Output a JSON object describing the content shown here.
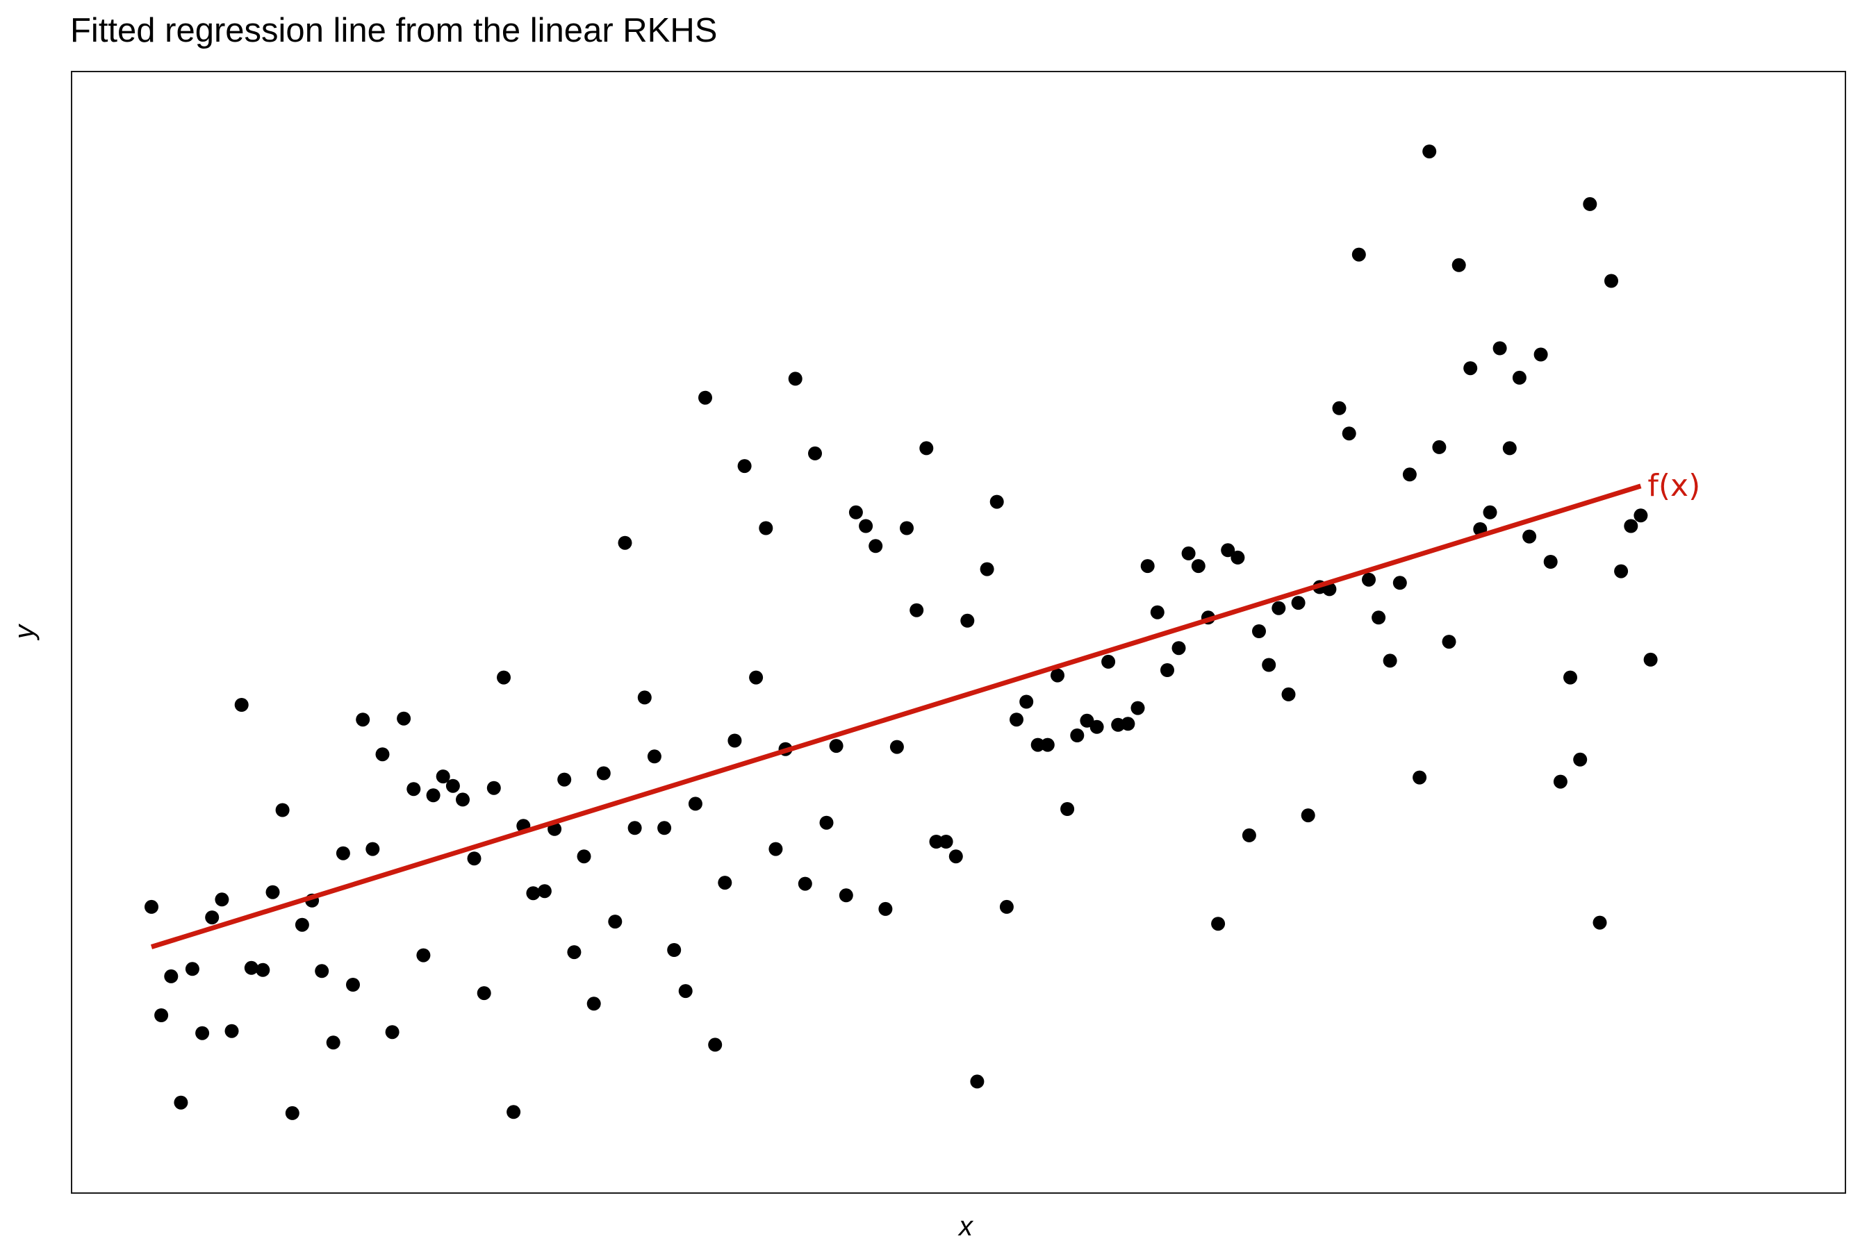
{
  "chart_data": {
    "type": "scatter",
    "title": "Fitted regression line from the linear RKHS",
    "xlabel": "x",
    "ylabel": "y",
    "xlim": [
      0,
      1
    ],
    "ylim": [
      0,
      1
    ],
    "grid": false,
    "legend": "none",
    "series": [
      {
        "color": "#000000",
        "points": [
          [
            0.0,
            0.239
          ],
          [
            0.006,
            0.136
          ],
          [
            0.012,
            0.173
          ],
          [
            0.018,
            0.053
          ],
          [
            0.025,
            0.18
          ],
          [
            0.031,
            0.119
          ],
          [
            0.037,
            0.229
          ],
          [
            0.043,
            0.246
          ],
          [
            0.049,
            0.121
          ],
          [
            0.055,
            0.431
          ],
          [
            0.061,
            0.181
          ],
          [
            0.068,
            0.179
          ],
          [
            0.074,
            0.253
          ],
          [
            0.08,
            0.331
          ],
          [
            0.086,
            0.043
          ],
          [
            0.092,
            0.222
          ],
          [
            0.098,
            0.245
          ],
          [
            0.104,
            0.178
          ],
          [
            0.111,
            0.11
          ],
          [
            0.117,
            0.29
          ],
          [
            0.123,
            0.165
          ],
          [
            0.129,
            0.417
          ],
          [
            0.135,
            0.294
          ],
          [
            0.141,
            0.384
          ],
          [
            0.147,
            0.12
          ],
          [
            0.154,
            0.418
          ],
          [
            0.16,
            0.351
          ],
          [
            0.166,
            0.193
          ],
          [
            0.172,
            0.345
          ],
          [
            0.178,
            0.363
          ],
          [
            0.184,
            0.354
          ],
          [
            0.19,
            0.341
          ],
          [
            0.197,
            0.285
          ],
          [
            0.203,
            0.157
          ],
          [
            0.209,
            0.352
          ],
          [
            0.215,
            0.457
          ],
          [
            0.221,
            0.044
          ],
          [
            0.227,
            0.316
          ],
          [
            0.233,
            0.252
          ],
          [
            0.24,
            0.254
          ],
          [
            0.246,
            0.313
          ],
          [
            0.252,
            0.36
          ],
          [
            0.258,
            0.196
          ],
          [
            0.264,
            0.287
          ],
          [
            0.27,
            0.147
          ],
          [
            0.276,
            0.366
          ],
          [
            0.283,
            0.225
          ],
          [
            0.289,
            0.585
          ],
          [
            0.295,
            0.314
          ],
          [
            0.301,
            0.438
          ],
          [
            0.307,
            0.382
          ],
          [
            0.313,
            0.314
          ],
          [
            0.319,
            0.198
          ],
          [
            0.326,
            0.159
          ],
          [
            0.332,
            0.337
          ],
          [
            0.338,
            0.723
          ],
          [
            0.344,
            0.108
          ],
          [
            0.35,
            0.262
          ],
          [
            0.356,
            0.397
          ],
          [
            0.362,
            0.658
          ],
          [
            0.369,
            0.457
          ],
          [
            0.375,
            0.599
          ],
          [
            0.381,
            0.294
          ],
          [
            0.387,
            0.389
          ],
          [
            0.393,
            0.741
          ],
          [
            0.399,
            0.261
          ],
          [
            0.405,
            0.67
          ],
          [
            0.412,
            0.319
          ],
          [
            0.418,
            0.392
          ],
          [
            0.424,
            0.25
          ],
          [
            0.43,
            0.614
          ],
          [
            0.436,
            0.601
          ],
          [
            0.442,
            0.582
          ],
          [
            0.448,
            0.237
          ],
          [
            0.455,
            0.391
          ],
          [
            0.461,
            0.599
          ],
          [
            0.467,
            0.521
          ],
          [
            0.473,
            0.675
          ],
          [
            0.479,
            0.301
          ],
          [
            0.485,
            0.301
          ],
          [
            0.491,
            0.287
          ],
          [
            0.498,
            0.511
          ],
          [
            0.504,
            0.073
          ],
          [
            0.51,
            0.56
          ],
          [
            0.516,
            0.624
          ],
          [
            0.522,
            0.239
          ],
          [
            0.528,
            0.417
          ],
          [
            0.534,
            0.434
          ],
          [
            0.541,
            0.393
          ],
          [
            0.547,
            0.393
          ],
          [
            0.553,
            0.459
          ],
          [
            0.559,
            0.332
          ],
          [
            0.565,
            0.402
          ],
          [
            0.571,
            0.416
          ],
          [
            0.577,
            0.41
          ],
          [
            0.584,
            0.472
          ],
          [
            0.59,
            0.412
          ],
          [
            0.596,
            0.413
          ],
          [
            0.602,
            0.428
          ],
          [
            0.608,
            0.563
          ],
          [
            0.614,
            0.519
          ],
          [
            0.62,
            0.464
          ],
          [
            0.627,
            0.485
          ],
          [
            0.633,
            0.575
          ],
          [
            0.639,
            0.563
          ],
          [
            0.645,
            0.514
          ],
          [
            0.651,
            0.223
          ],
          [
            0.657,
            0.578
          ],
          [
            0.663,
            0.571
          ],
          [
            0.67,
            0.307
          ],
          [
            0.676,
            0.501
          ],
          [
            0.682,
            0.469
          ],
          [
            0.688,
            0.523
          ],
          [
            0.694,
            0.441
          ],
          [
            0.7,
            0.528
          ],
          [
            0.706,
            0.326
          ],
          [
            0.713,
            0.543
          ],
          [
            0.719,
            0.541
          ],
          [
            0.725,
            0.713
          ],
          [
            0.731,
            0.689
          ],
          [
            0.737,
            0.859
          ],
          [
            0.743,
            0.55
          ],
          [
            0.749,
            0.514
          ],
          [
            0.756,
            0.473
          ],
          [
            0.762,
            0.547
          ],
          [
            0.768,
            0.65
          ],
          [
            0.774,
            0.362
          ],
          [
            0.78,
            0.957
          ],
          [
            0.786,
            0.676
          ],
          [
            0.792,
            0.491
          ],
          [
            0.798,
            0.849
          ],
          [
            0.805,
            0.751
          ],
          [
            0.811,
            0.598
          ],
          [
            0.817,
            0.614
          ],
          [
            0.823,
            0.77
          ],
          [
            0.829,
            0.675
          ],
          [
            0.835,
            0.742
          ],
          [
            0.841,
            0.591
          ],
          [
            0.848,
            0.764
          ],
          [
            0.854,
            0.567
          ],
          [
            0.86,
            0.358
          ],
          [
            0.866,
            0.457
          ],
          [
            0.872,
            0.379
          ],
          [
            0.878,
            0.907
          ],
          [
            0.884,
            0.224
          ],
          [
            0.891,
            0.834
          ],
          [
            0.897,
            0.558
          ],
          [
            0.903,
            0.601
          ],
          [
            0.909,
            0.611
          ],
          [
            0.915,
            0.474
          ]
        ]
      }
    ],
    "fit_line": {
      "label": "f(x)",
      "color": "#cc1a0d",
      "points": [
        [
          0.0,
          0.201
        ],
        [
          0.909,
          0.639
        ]
      ]
    }
  }
}
